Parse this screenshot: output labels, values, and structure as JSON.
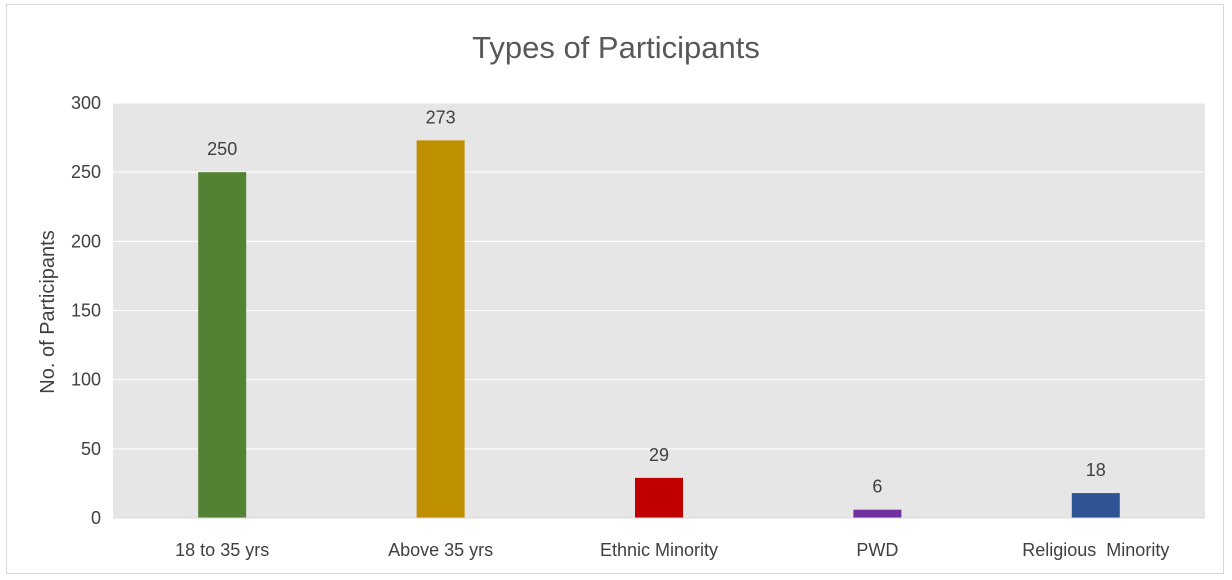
{
  "chart_data": {
    "type": "bar",
    "title": "Types of Participants",
    "xlabel": "",
    "ylabel": "No. of Participants",
    "categories": [
      "18 to 35 yrs",
      "Above 35 yrs",
      "Ethnic Minority",
      "PWD",
      "Religious  Minority"
    ],
    "values": [
      250,
      273,
      29,
      6,
      18
    ],
    "colors": [
      "#548235",
      "#bf9000",
      "#c00000",
      "#7030a0",
      "#2f5597"
    ],
    "ylim": [
      0,
      300
    ],
    "yticks": [
      0,
      50,
      100,
      150,
      200,
      250,
      300
    ],
    "grid": true,
    "plot_background": "#e7e6e6",
    "data_labels": true,
    "legend": "none"
  }
}
